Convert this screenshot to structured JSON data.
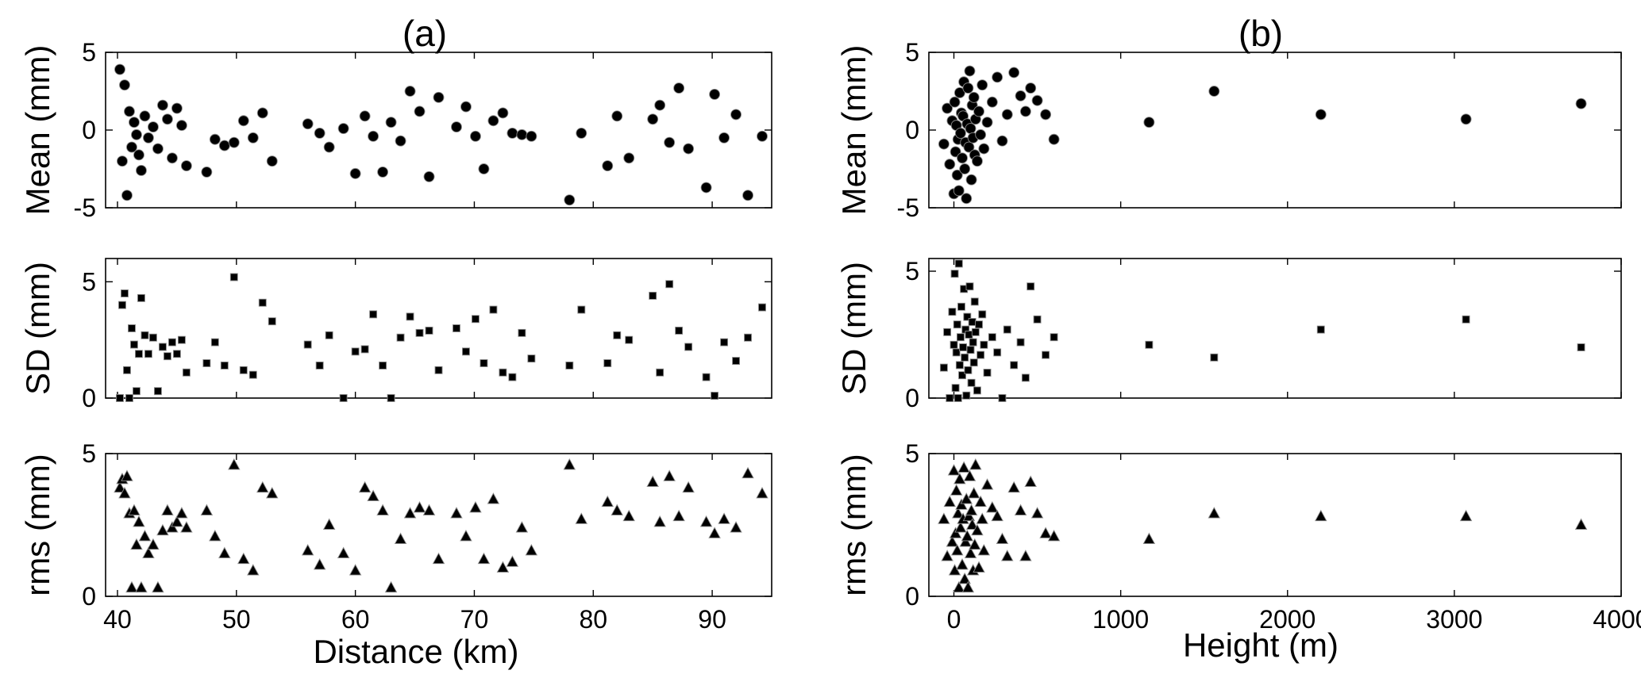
{
  "chart_data": [
    {
      "panel_label": "(a)",
      "type": "scatter",
      "xlabel": "Distance (km)",
      "xlim": [
        39,
        95
      ],
      "xticks": [
        40,
        50,
        60,
        70,
        80,
        90
      ],
      "x": [
        40.2,
        40.4,
        40.6,
        40.8,
        41.0,
        41.2,
        41.4,
        41.6,
        41.8,
        42.0,
        42.3,
        42.6,
        43.0,
        43.4,
        43.8,
        44.2,
        44.6,
        45.0,
        45.4,
        45.8,
        47.5,
        48.2,
        49.0,
        49.8,
        50.6,
        51.4,
        52.2,
        53.0,
        56.0,
        57.0,
        57.8,
        59.0,
        60.0,
        60.8,
        61.5,
        62.3,
        63.0,
        63.8,
        64.6,
        65.4,
        66.2,
        67.0,
        68.5,
        69.3,
        70.1,
        70.8,
        71.6,
        72.4,
        73.2,
        74.0,
        74.8,
        78.0,
        79.0,
        81.2,
        82.0,
        83.0,
        85.0,
        85.6,
        86.4,
        87.2,
        88.0,
        89.5,
        90.2,
        91.0,
        92.0,
        93.0,
        94.2
      ],
      "series": [
        {
          "ylabel": "Mean (mm)",
          "ylim": [
            -5,
            5
          ],
          "yticks": [
            -5,
            0,
            5
          ],
          "marker": "circle",
          "y": [
            3.9,
            -2.0,
            2.9,
            -4.2,
            1.2,
            -1.1,
            0.5,
            -0.3,
            -1.6,
            -2.6,
            0.9,
            -0.5,
            0.2,
            -1.2,
            1.6,
            0.7,
            -1.8,
            1.4,
            0.3,
            -2.3,
            -2.7,
            -0.6,
            -1.0,
            -0.8,
            0.6,
            -0.5,
            1.1,
            -2.0,
            0.4,
            -0.2,
            -1.1,
            0.1,
            -2.8,
            0.9,
            -0.4,
            -2.7,
            0.5,
            -0.7,
            2.5,
            1.2,
            -3.0,
            2.1,
            0.2,
            1.5,
            -0.4,
            -2.5,
            0.6,
            1.1,
            -0.2,
            -0.3,
            -0.4,
            -4.5,
            -0.2,
            -2.3,
            0.9,
            -1.8,
            0.7,
            1.6,
            -0.8,
            2.7,
            -1.2,
            -3.7,
            2.3,
            -0.5,
            1.0,
            -4.2,
            -0.4
          ]
        },
        {
          "ylabel": "SD (mm)",
          "ylim": [
            0,
            6
          ],
          "yticks": [
            0,
            5
          ],
          "marker": "square",
          "y": [
            0.0,
            4.0,
            4.5,
            1.2,
            0.0,
            3.0,
            2.3,
            0.3,
            1.9,
            4.3,
            2.7,
            1.9,
            2.6,
            0.3,
            2.2,
            1.8,
            2.4,
            1.9,
            2.5,
            1.1,
            1.5,
            2.4,
            1.4,
            5.2,
            1.2,
            1.0,
            4.1,
            3.3,
            2.3,
            1.4,
            2.7,
            0.0,
            2.0,
            2.1,
            3.6,
            1.4,
            0.0,
            2.6,
            3.5,
            2.8,
            2.9,
            1.2,
            3.0,
            2.0,
            3.4,
            1.5,
            3.8,
            1.1,
            0.9,
            2.8,
            1.7,
            1.4,
            3.8,
            1.5,
            2.7,
            2.5,
            4.4,
            1.1,
            4.9,
            2.9,
            2.2,
            0.9,
            0.1,
            2.4,
            1.6,
            2.6,
            3.9
          ]
        },
        {
          "ylabel": "rms (mm)",
          "ylim": [
            0,
            5
          ],
          "yticks": [
            0,
            5
          ],
          "marker": "triangle",
          "y": [
            3.8,
            4.1,
            3.6,
            4.2,
            2.9,
            0.3,
            3.0,
            1.8,
            2.6,
            0.3,
            2.1,
            1.5,
            1.8,
            0.3,
            2.3,
            3.0,
            2.4,
            2.6,
            2.9,
            2.4,
            3.0,
            2.1,
            1.5,
            4.6,
            1.3,
            0.9,
            3.8,
            3.6,
            1.6,
            1.1,
            2.5,
            1.5,
            0.9,
            3.8,
            3.5,
            3.0,
            0.3,
            2.0,
            2.9,
            3.1,
            3.0,
            1.3,
            2.9,
            2.1,
            3.1,
            1.3,
            3.4,
            1.0,
            1.2,
            2.4,
            1.6,
            4.6,
            2.7,
            3.3,
            3.0,
            2.8,
            4.0,
            2.6,
            4.2,
            2.8,
            3.8,
            2.6,
            2.2,
            2.7,
            2.4,
            4.3,
            3.6
          ]
        }
      ]
    },
    {
      "panel_label": "(b)",
      "type": "scatter",
      "xlabel": "Height (m)",
      "xlim": [
        -150,
        4000
      ],
      "xticks": [
        0,
        1000,
        2000,
        3000,
        4000
      ],
      "x": [
        -60,
        -40,
        -25,
        -10,
        0,
        5,
        10,
        15,
        20,
        25,
        30,
        35,
        40,
        45,
        50,
        55,
        60,
        65,
        70,
        75,
        80,
        85,
        90,
        95,
        100,
        105,
        110,
        115,
        120,
        125,
        130,
        140,
        150,
        160,
        170,
        180,
        200,
        230,
        260,
        290,
        320,
        360,
        400,
        430,
        460,
        500,
        550,
        600,
        1170,
        1560,
        2200,
        3070,
        3760
      ],
      "series": [
        {
          "ylabel": "Mean (mm)",
          "ylim": [
            -5,
            5
          ],
          "yticks": [
            -5,
            0,
            5
          ],
          "marker": "circle",
          "y": [
            -0.9,
            1.4,
            -2.2,
            0.6,
            -4.1,
            1.8,
            -1.4,
            0.3,
            -2.9,
            -0.6,
            -3.9,
            2.4,
            -0.2,
            1.1,
            -1.8,
            0.9,
            3.1,
            -2.5,
            -0.8,
            -4.4,
            0.4,
            2.7,
            -1.1,
            3.8,
            0.1,
            -3.2,
            1.6,
            -0.5,
            2.1,
            -1.6,
            0.7,
            -2.0,
            1.2,
            -0.3,
            2.9,
            -1.2,
            0.5,
            1.8,
            3.4,
            -0.7,
            1.0,
            3.7,
            2.2,
            1.2,
            2.7,
            1.9,
            1.0,
            -0.6,
            0.5,
            2.5,
            1.0,
            0.7,
            1.7
          ]
        },
        {
          "ylabel": "SD (mm)",
          "ylim": [
            0,
            5.5
          ],
          "yticks": [
            0,
            5
          ],
          "marker": "square",
          "y": [
            1.2,
            2.6,
            0.0,
            3.4,
            2.1,
            4.9,
            0.4,
            1.8,
            2.9,
            0.0,
            5.3,
            1.3,
            2.4,
            3.6,
            0.9,
            2.0,
            4.3,
            1.6,
            2.7,
            0.1,
            3.2,
            1.1,
            2.5,
            4.4,
            1.9,
            0.6,
            3.0,
            2.2,
            1.4,
            3.8,
            2.6,
            0.3,
            2.9,
            1.7,
            3.3,
            2.1,
            1.0,
            2.4,
            1.8,
            0.0,
            2.7,
            1.3,
            2.2,
            0.8,
            4.4,
            3.1,
            1.7,
            2.4,
            2.1,
            1.6,
            2.7,
            3.1,
            2.0
          ]
        },
        {
          "ylabel": "rms (mm)",
          "ylim": [
            0,
            5
          ],
          "yticks": [
            0,
            5
          ],
          "marker": "triangle",
          "y": [
            2.7,
            1.4,
            3.3,
            1.9,
            4.4,
            0.9,
            2.2,
            3.7,
            1.6,
            2.9,
            0.3,
            4.1,
            2.4,
            3.2,
            1.1,
            2.7,
            4.5,
            0.6,
            1.9,
            3.4,
            2.1,
            0.3,
            2.8,
            4.2,
            1.5,
            3.0,
            2.5,
            0.9,
            3.6,
            1.8,
            4.6,
            2.3,
            1.0,
            3.3,
            2.7,
            1.6,
            3.9,
            3.1,
            2.8,
            2.0,
            1.4,
            3.8,
            3.0,
            1.4,
            4.0,
            2.9,
            2.2,
            2.1,
            2.0,
            2.9,
            2.8,
            2.8,
            2.5
          ]
        }
      ]
    }
  ]
}
